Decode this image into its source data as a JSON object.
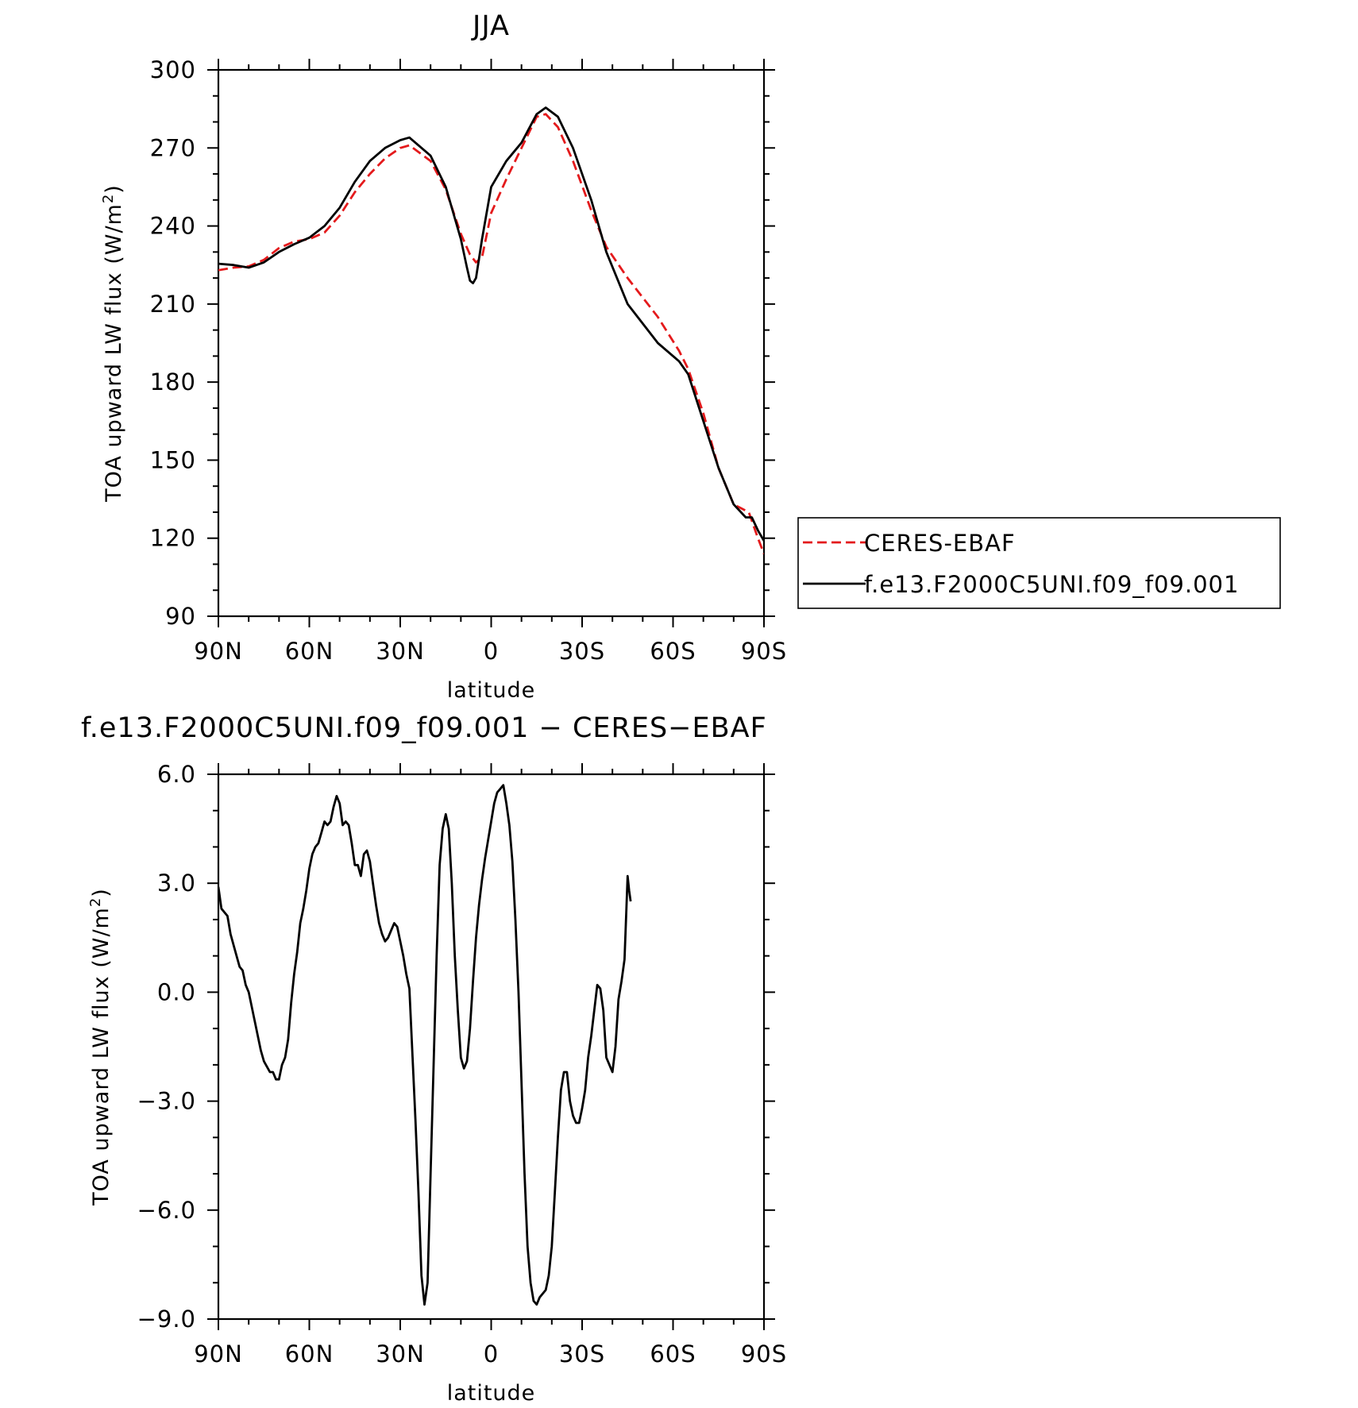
{
  "chart_data": [
    {
      "type": "line",
      "title": "JJA",
      "xlabel": "latitude",
      "ylabel": "TOA upward LW flux (W/m²)",
      "xlim": [
        90,
        -90
      ],
      "ylim": [
        90,
        300
      ],
      "xticks": [
        90,
        60,
        30,
        0,
        -30,
        -60,
        -90
      ],
      "xticklabels": [
        "90N",
        "60N",
        "30N",
        "0",
        "30S",
        "60S",
        "90S"
      ],
      "yticks": [
        90,
        120,
        150,
        180,
        210,
        240,
        270,
        300
      ],
      "yticklabels": [
        "90",
        "120",
        "150",
        "180",
        "210",
        "240",
        "270",
        "300"
      ],
      "legend_position": "right",
      "series": [
        {
          "name": "CERES-EBAF",
          "color": "#e41a1c",
          "dash": "dashed",
          "points": [
            [
              90,
              223
            ],
            [
              85,
              224
            ],
            [
              80,
              224.5
            ],
            [
              75,
              227
            ],
            [
              70,
              231.5
            ],
            [
              65,
              234
            ],
            [
              60,
              235
            ],
            [
              55,
              237.5
            ],
            [
              50,
              244
            ],
            [
              45,
              253
            ],
            [
              40,
              260
            ],
            [
              35,
              266
            ],
            [
              30,
              270
            ],
            [
              27,
              271
            ],
            [
              20,
              265
            ],
            [
              15,
              254
            ],
            [
              10,
              237
            ],
            [
              7,
              229
            ],
            [
              5,
              226
            ],
            [
              3,
              228
            ],
            [
              0,
              245
            ],
            [
              -5,
              258
            ],
            [
              -10,
              270
            ],
            [
              -15,
              282
            ],
            [
              -18,
              283
            ],
            [
              -22,
              278
            ],
            [
              -27,
              265
            ],
            [
              -33,
              246
            ],
            [
              -38,
              232
            ],
            [
              -45,
              220
            ],
            [
              -55,
              205
            ],
            [
              -62,
              192
            ],
            [
              -65,
              185
            ],
            [
              -70,
              168
            ],
            [
              -75,
              147
            ],
            [
              -80,
              133
            ],
            [
              -85,
              130
            ],
            [
              -88,
              120
            ],
            [
              -90,
              114
            ]
          ]
        },
        {
          "name": "f.e13.F2000C5UNI.f09_f09.001",
          "color": "#000000",
          "dash": "solid",
          "points": [
            [
              90,
              225.5
            ],
            [
              85,
              225
            ],
            [
              80,
              224
            ],
            [
              75,
              226
            ],
            [
              70,
              230
            ],
            [
              65,
              233
            ],
            [
              60,
              235.5
            ],
            [
              55,
              240
            ],
            [
              50,
              247
            ],
            [
              45,
              257
            ],
            [
              40,
              265
            ],
            [
              35,
              270
            ],
            [
              30,
              273
            ],
            [
              27,
              274
            ],
            [
              20,
              267
            ],
            [
              15,
              255
            ],
            [
              10,
              235
            ],
            [
              8,
              224
            ],
            [
              7,
              219
            ],
            [
              6,
              218
            ],
            [
              5,
              220
            ],
            [
              3,
              235
            ],
            [
              0,
              255
            ],
            [
              -5,
              265
            ],
            [
              -10,
              272
            ],
            [
              -15,
              283
            ],
            [
              -18,
              285.5
            ],
            [
              -22,
              282
            ],
            [
              -27,
              270
            ],
            [
              -33,
              250
            ],
            [
              -38,
              230
            ],
            [
              -45,
              210
            ],
            [
              -55,
              195
            ],
            [
              -62,
              188
            ],
            [
              -65,
              183
            ],
            [
              -70,
              165
            ],
            [
              -75,
              147
            ],
            [
              -80,
              133
            ],
            [
              -84,
              128
            ],
            [
              -86,
              128
            ],
            [
              -88,
              123
            ],
            [
              -90,
              119
            ]
          ]
        }
      ]
    },
    {
      "type": "line",
      "title": "f.e13.F2000C5UNI.f09_f09.001 − CERES−EBAF",
      "xlabel": "latitude",
      "ylabel": "TOA upward LW flux (W/m²)",
      "xlim": [
        90,
        -90
      ],
      "ylim": [
        -9,
        6
      ],
      "xticks": [
        90,
        60,
        30,
        0,
        -30,
        -60,
        -90
      ],
      "xticklabels": [
        "90N",
        "60N",
        "30N",
        "0",
        "30S",
        "60S",
        "90S"
      ],
      "yticks": [
        6,
        3,
        0,
        -3,
        -6,
        -9
      ],
      "yticklabels": [
        "6.0",
        "3.0",
        "0.0",
        "−3.0",
        "−6.0",
        "−9.0"
      ],
      "series": [
        {
          "color": "#000000",
          "dash": "solid",
          "points": [
            [
              90,
              2.9
            ],
            [
              89,
              2.3
            ],
            [
              87,
              2.1
            ],
            [
              86,
              1.6
            ],
            [
              84,
              1.0
            ],
            [
              83,
              0.7
            ],
            [
              82,
              0.6
            ],
            [
              81,
              0.2
            ],
            [
              80,
              0
            ],
            [
              78,
              -0.8
            ],
            [
              77,
              -1.2
            ],
            [
              76,
              -1.6
            ],
            [
              75,
              -1.9
            ],
            [
              73,
              -2.2
            ],
            [
              72,
              -2.2
            ],
            [
              71,
              -2.4
            ],
            [
              70,
              -2.4
            ],
            [
              69,
              -2.0
            ],
            [
              68,
              -1.8
            ],
            [
              67,
              -1.3
            ],
            [
              66,
              -0.3
            ],
            [
              65,
              0.5
            ],
            [
              64,
              1.1
            ],
            [
              63,
              1.9
            ],
            [
              62,
              2.3
            ],
            [
              61,
              2.8
            ],
            [
              60,
              3.4
            ],
            [
              59,
              3.8
            ],
            [
              58,
              4.0
            ],
            [
              57,
              4.1
            ],
            [
              56,
              4.4
            ],
            [
              55,
              4.7
            ],
            [
              54,
              4.6
            ],
            [
              53,
              4.7
            ],
            [
              52,
              5.1
            ],
            [
              51,
              5.4
            ],
            [
              50,
              5.2
            ],
            [
              49,
              4.6
            ],
            [
              48,
              4.7
            ],
            [
              47,
              4.6
            ],
            [
              46,
              4.1
            ],
            [
              45,
              3.5
            ],
            [
              44,
              3.5
            ],
            [
              43,
              3.2
            ],
            [
              42,
              3.8
            ],
            [
              41,
              3.9
            ],
            [
              40,
              3.6
            ],
            [
              39,
              3.0
            ],
            [
              38,
              2.4
            ],
            [
              37,
              1.9
            ],
            [
              36,
              1.6
            ],
            [
              35,
              1.4
            ],
            [
              34,
              1.5
            ],
            [
              33,
              1.7
            ],
            [
              32,
              1.9
            ],
            [
              31,
              1.8
            ],
            [
              30,
              1.4
            ],
            [
              29,
              1.0
            ],
            [
              28,
              0.5
            ],
            [
              27,
              0.1
            ],
            [
              26,
              -1.7
            ],
            [
              25,
              -3.5
            ],
            [
              24,
              -5.5
            ],
            [
              23,
              -7.8
            ],
            [
              22,
              -8.6
            ],
            [
              21,
              -8.0
            ],
            [
              20,
              -5.0
            ],
            [
              19,
              -2.0
            ],
            [
              18,
              1.0
            ],
            [
              17,
              3.5
            ],
            [
              16,
              4.5
            ],
            [
              15,
              4.9
            ],
            [
              14,
              4.5
            ],
            [
              13,
              3.0
            ],
            [
              12,
              1.0
            ],
            [
              11,
              -0.5
            ],
            [
              10,
              -1.8
            ],
            [
              9,
              -2.1
            ],
            [
              8,
              -1.9
            ],
            [
              7,
              -1.0
            ],
            [
              6,
              0.3
            ],
            [
              5,
              1.5
            ],
            [
              4,
              2.4
            ],
            [
              3,
              3.1
            ],
            [
              2,
              3.7
            ],
            [
              1,
              4.2
            ],
            [
              0,
              4.7
            ],
            [
              -1,
              5.2
            ],
            [
              -2,
              5.5
            ],
            [
              -3,
              5.6
            ],
            [
              -4,
              5.7
            ],
            [
              -5,
              5.2
            ],
            [
              -6,
              4.6
            ],
            [
              -7,
              3.6
            ],
            [
              -8,
              2.0
            ],
            [
              -9,
              0
            ],
            [
              -10,
              -2.5
            ],
            [
              -11,
              -5.0
            ],
            [
              -12,
              -7.0
            ],
            [
              -13,
              -8.0
            ],
            [
              -14,
              -8.5
            ],
            [
              -15,
              -8.6
            ],
            [
              -16,
              -8.4
            ],
            [
              -17,
              -8.3
            ],
            [
              -18,
              -8.2
            ],
            [
              -19,
              -7.8
            ],
            [
              -20,
              -7.0
            ],
            [
              -21,
              -5.5
            ],
            [
              -22,
              -4.0
            ],
            [
              -23,
              -2.7
            ],
            [
              -24,
              -2.2
            ],
            [
              -25,
              -2.2
            ],
            [
              -26,
              -3.0
            ],
            [
              -27,
              -3.4
            ],
            [
              -28,
              -3.6
            ],
            [
              -29,
              -3.6
            ],
            [
              -30,
              -3.2
            ],
            [
              -31,
              -2.7
            ],
            [
              -32,
              -1.8
            ],
            [
              -33,
              -1.2
            ],
            [
              -34,
              -0.5
            ],
            [
              -35,
              0.2
            ],
            [
              -36,
              0.1
            ],
            [
              -37,
              -0.5
            ],
            [
              -38,
              -1.8
            ],
            [
              -39,
              -2.0
            ],
            [
              -40,
              -2.2
            ],
            [
              -41,
              -1.5
            ],
            [
              -42,
              -0.2
            ],
            [
              -43,
              0.3
            ],
            [
              -44,
              0.9
            ],
            [
              -45,
              3.2
            ],
            [
              -45.5,
              2.8
            ],
            [
              -46,
              2.5
            ]
          ]
        }
      ]
    }
  ]
}
